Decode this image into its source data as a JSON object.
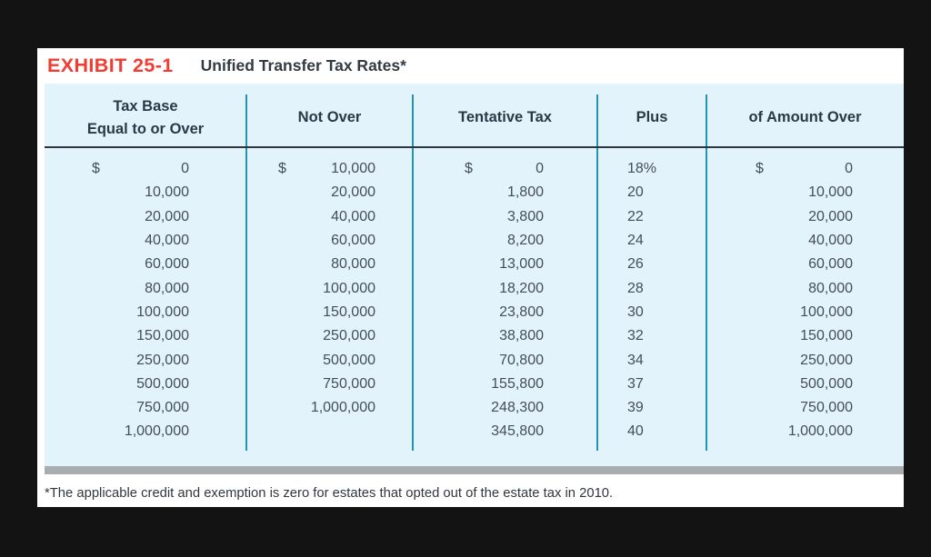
{
  "header": {
    "exhibit_label": "EXHIBIT 25-1",
    "title": "Unified Transfer Tax Rates*"
  },
  "table": {
    "columns": [
      "Tax Base\nEqual to or Over",
      "Not Over",
      "Tentative Tax",
      "Plus",
      "of Amount Over"
    ],
    "rows": [
      [
        "$ 0",
        "$ 10,000",
        "$ 0",
        "18%",
        "$ 0"
      ],
      [
        "10,000",
        "20,000",
        "1,800",
        "20",
        "10,000"
      ],
      [
        "20,000",
        "40,000",
        "3,800",
        "22",
        "20,000"
      ],
      [
        "40,000",
        "60,000",
        "8,200",
        "24",
        "40,000"
      ],
      [
        "60,000",
        "80,000",
        "13,000",
        "26",
        "60,000"
      ],
      [
        "80,000",
        "100,000",
        "18,200",
        "28",
        "80,000"
      ],
      [
        "100,000",
        "150,000",
        "23,800",
        "30",
        "100,000"
      ],
      [
        "150,000",
        "250,000",
        "38,800",
        "32",
        "150,000"
      ],
      [
        "250,000",
        "500,000",
        "70,800",
        "34",
        "250,000"
      ],
      [
        "500,000",
        "750,000",
        "155,800",
        "37",
        "500,000"
      ],
      [
        "750,000",
        "1,000,000",
        "248,300",
        "39",
        "750,000"
      ],
      [
        "1,000,000",
        "",
        "345,800",
        "40",
        "1,000,000"
      ]
    ]
  },
  "footnote": "*The applicable credit and exemption is zero for estates that opted out of the estate tax in 2010.",
  "colors": {
    "accent_red": "#f03c31",
    "table_background": "#e2f3fc",
    "divider_teal": "#2095b3",
    "header_rule": "#2b333c",
    "bottom_bar_gray": "#a9acb0",
    "page_background": "#131313"
  }
}
